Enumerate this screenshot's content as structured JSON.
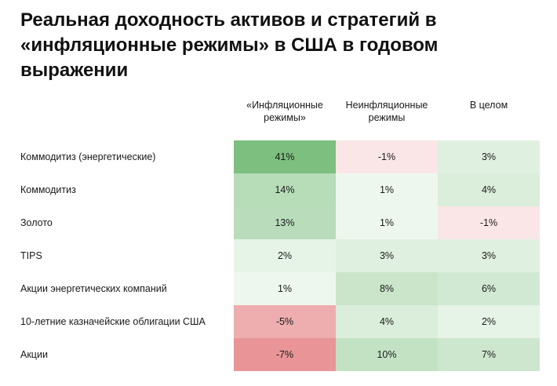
{
  "chart_data": {
    "type": "table",
    "title": "Реальная доходность активов и стратегий в «инфляционные режимы» в США в годовом выражении",
    "columns": [
      "«Инфляционные\nрежимы»",
      "Неинфляционные\nрежимы",
      "В целом"
    ],
    "rows": [
      {
        "label": "Коммодитиз (энергетические)",
        "values": [
          41,
          -1,
          3
        ]
      },
      {
        "label": "Коммодитиз",
        "values": [
          14,
          1,
          4
        ]
      },
      {
        "label": "Золото",
        "values": [
          13,
          1,
          -1
        ]
      },
      {
        "label": "TIPS",
        "values": [
          2,
          3,
          3
        ]
      },
      {
        "label": "Акции энергетических компаний",
        "values": [
          1,
          8,
          6
        ]
      },
      {
        "label": "10-летние казначейские облигации США",
        "values": [
          -5,
          4,
          2
        ]
      },
      {
        "label": "Акции",
        "values": [
          -7,
          10,
          7
        ]
      }
    ],
    "unit": "%",
    "colors": {
      "positive": "#7cbf7e",
      "negative": "#e99597",
      "neutral": "#ffffff"
    }
  }
}
